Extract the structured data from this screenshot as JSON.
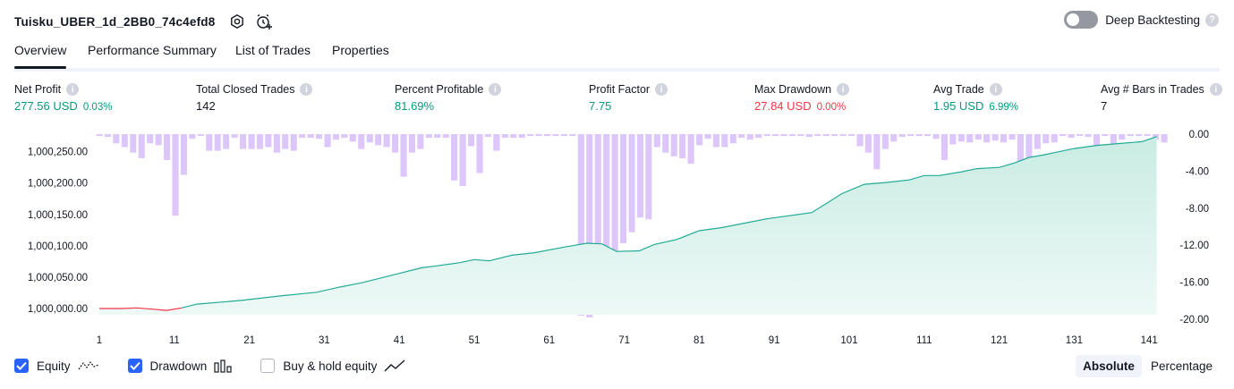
{
  "header": {
    "strategy_name": "Tuisku_UBER_1d_2BB0_74c4efd8",
    "settings_icon": "gear-icon",
    "alert_icon": "alarm-clock-plus-icon",
    "deep_backtesting_label": "Deep Backtesting",
    "deep_backtesting_on": false,
    "help_glyph": "?"
  },
  "tabs": [
    {
      "label": "Overview",
      "active": true
    },
    {
      "label": "Performance Summary",
      "active": false
    },
    {
      "label": "List of Trades",
      "active": false
    },
    {
      "label": "Properties",
      "active": false
    }
  ],
  "metrics": [
    {
      "label": "Net Profit",
      "value": "277.56 USD",
      "pct": "0.03%",
      "color": "green"
    },
    {
      "label": "Total Closed Trades",
      "value": "142",
      "pct": "",
      "color": "dark"
    },
    {
      "label": "Percent Profitable",
      "value": "81.69%",
      "pct": "",
      "color": "green"
    },
    {
      "label": "Profit Factor",
      "value": "7.75",
      "pct": "",
      "color": "green"
    },
    {
      "label": "Max Drawdown",
      "value": "27.84 USD",
      "pct": "0.00%",
      "color": "red"
    },
    {
      "label": "Avg Trade",
      "value": "1.95 USD",
      "pct": "6.99%",
      "color": "green"
    },
    {
      "label": "Avg # Bars in Trades",
      "value": "7",
      "pct": "",
      "color": "dark"
    }
  ],
  "colors": {
    "equity_line": "#22ab94",
    "equity_fill_top": "#c9ece3",
    "equity_negative": "#f23645",
    "drawdown_bar": "#d5b8f7",
    "accent": "#2962ff",
    "green": "#089981",
    "red": "#f23645"
  },
  "chart_data": {
    "type": "area",
    "x_ticks": [
      "1",
      "11",
      "21",
      "31",
      "41",
      "51",
      "61",
      "71",
      "81",
      "91",
      "101",
      "111",
      "121",
      "131",
      "141"
    ],
    "left_axis_ticks": [
      "1,000,000.00",
      "1,000,050.00",
      "1,000,100.00",
      "1,000,150.00",
      "1,000,200.00",
      "1,000,250.00"
    ],
    "right_axis_ticks": [
      "0.00",
      "-4.00",
      "-8.00",
      "-12.00",
      "-16.00",
      "-20.00"
    ],
    "equity_ylim": [
      999990,
      1000278
    ],
    "drawdown_ylim": [
      -20,
      0
    ],
    "xlim": [
      1,
      143
    ],
    "series": [
      {
        "name": "Equity",
        "x": [
          1,
          4,
          6,
          8,
          10,
          12,
          14,
          20,
          25,
          30,
          33,
          36,
          40,
          44,
          46,
          49,
          51,
          53,
          56,
          59,
          63,
          66,
          68,
          70,
          73,
          75,
          78,
          81,
          84,
          87,
          90,
          93,
          96,
          98,
          100,
          103,
          106,
          109,
          111,
          113,
          116,
          118,
          121,
          123,
          125,
          127,
          129,
          131,
          134,
          137,
          140,
          142
        ],
        "values": [
          1000000,
          1000000,
          1000001,
          999999,
          999997,
          1000001,
          1000007,
          1000013,
          1000020,
          1000026,
          1000034,
          1000041,
          1000053,
          1000065,
          1000068,
          1000073,
          1000078,
          1000076,
          1000085,
          1000089,
          1000098,
          1000104,
          1000103,
          1000091,
          1000092,
          1000102,
          1000110,
          1000124,
          1000129,
          1000136,
          1000143,
          1000148,
          1000153,
          1000168,
          1000183,
          1000198,
          1000201,
          1000205,
          1000212,
          1000212,
          1000218,
          1000223,
          1000225,
          1000232,
          1000241,
          1000245,
          1000250,
          1000255,
          1000260,
          1000263,
          1000266,
          1000274
        ]
      },
      {
        "name": "Drawdown",
        "values": [
          -0.2,
          -0.3,
          -1.0,
          -1.4,
          -2.0,
          -2.6,
          -1.0,
          -1.2,
          -2.8,
          -8.8,
          -4.4,
          -0.5,
          -0.2,
          -1.8,
          -1.8,
          -1.6,
          -0.4,
          -1.6,
          -1.6,
          -1.6,
          -1.4,
          -2.0,
          -1.6,
          -1.8,
          -0.4,
          -0.4,
          -0.5,
          -1.4,
          -0.6,
          -0.4,
          -0.8,
          -1.6,
          -0.9,
          -1.2,
          -1.4,
          -2.0,
          -4.6,
          -2.0,
          -1.6,
          -0.4,
          -0.4,
          -0.4,
          -5.0,
          -5.6,
          -1.3,
          -4.2,
          -0.3,
          -1.8,
          -0.4,
          -0.4,
          -0.4,
          -0.2,
          -0.2,
          -0.2,
          -0.2,
          -0.2,
          -0.2,
          -19.6,
          -19.8,
          -17.8,
          -16.8,
          -16.6,
          -11.8,
          -10.6,
          -9.0,
          -9.2,
          -1.4,
          -2.0,
          -2.4,
          -2.6,
          -3.2,
          -1.2,
          -0.5,
          -1.4,
          -1.4,
          -1.0,
          -0.4,
          -0.6,
          -0.4,
          -0.2,
          -0.2,
          -0.2,
          -0.2,
          -0.2,
          -0.3,
          -0.2,
          -0.2,
          -0.2,
          -0.2,
          -0.2,
          -1.3,
          -2.0,
          -3.8,
          -1.6,
          -0.8,
          -0.3,
          -0.2,
          -0.2,
          -0.2,
          -0.5,
          -2.8,
          -1.1,
          -0.8,
          -0.9,
          -0.6,
          -0.9,
          -0.7,
          -0.9,
          -0.6,
          -3.6,
          -4.2,
          -1.6,
          -1.0,
          -0.9,
          -0.2,
          -0.4,
          -0.2,
          -0.3,
          -3.4,
          -0.2,
          -1.2,
          -0.6,
          -0.2,
          -0.2,
          -0.2,
          -0.6,
          -0.9
        ]
      }
    ],
    "legend": [
      {
        "label": "Equity",
        "checked": true
      },
      {
        "label": "Drawdown",
        "checked": true
      },
      {
        "label": "Buy & hold equity",
        "checked": false
      }
    ]
  },
  "view_toggle": {
    "options": [
      "Absolute",
      "Percentage"
    ],
    "selected": "Absolute"
  }
}
